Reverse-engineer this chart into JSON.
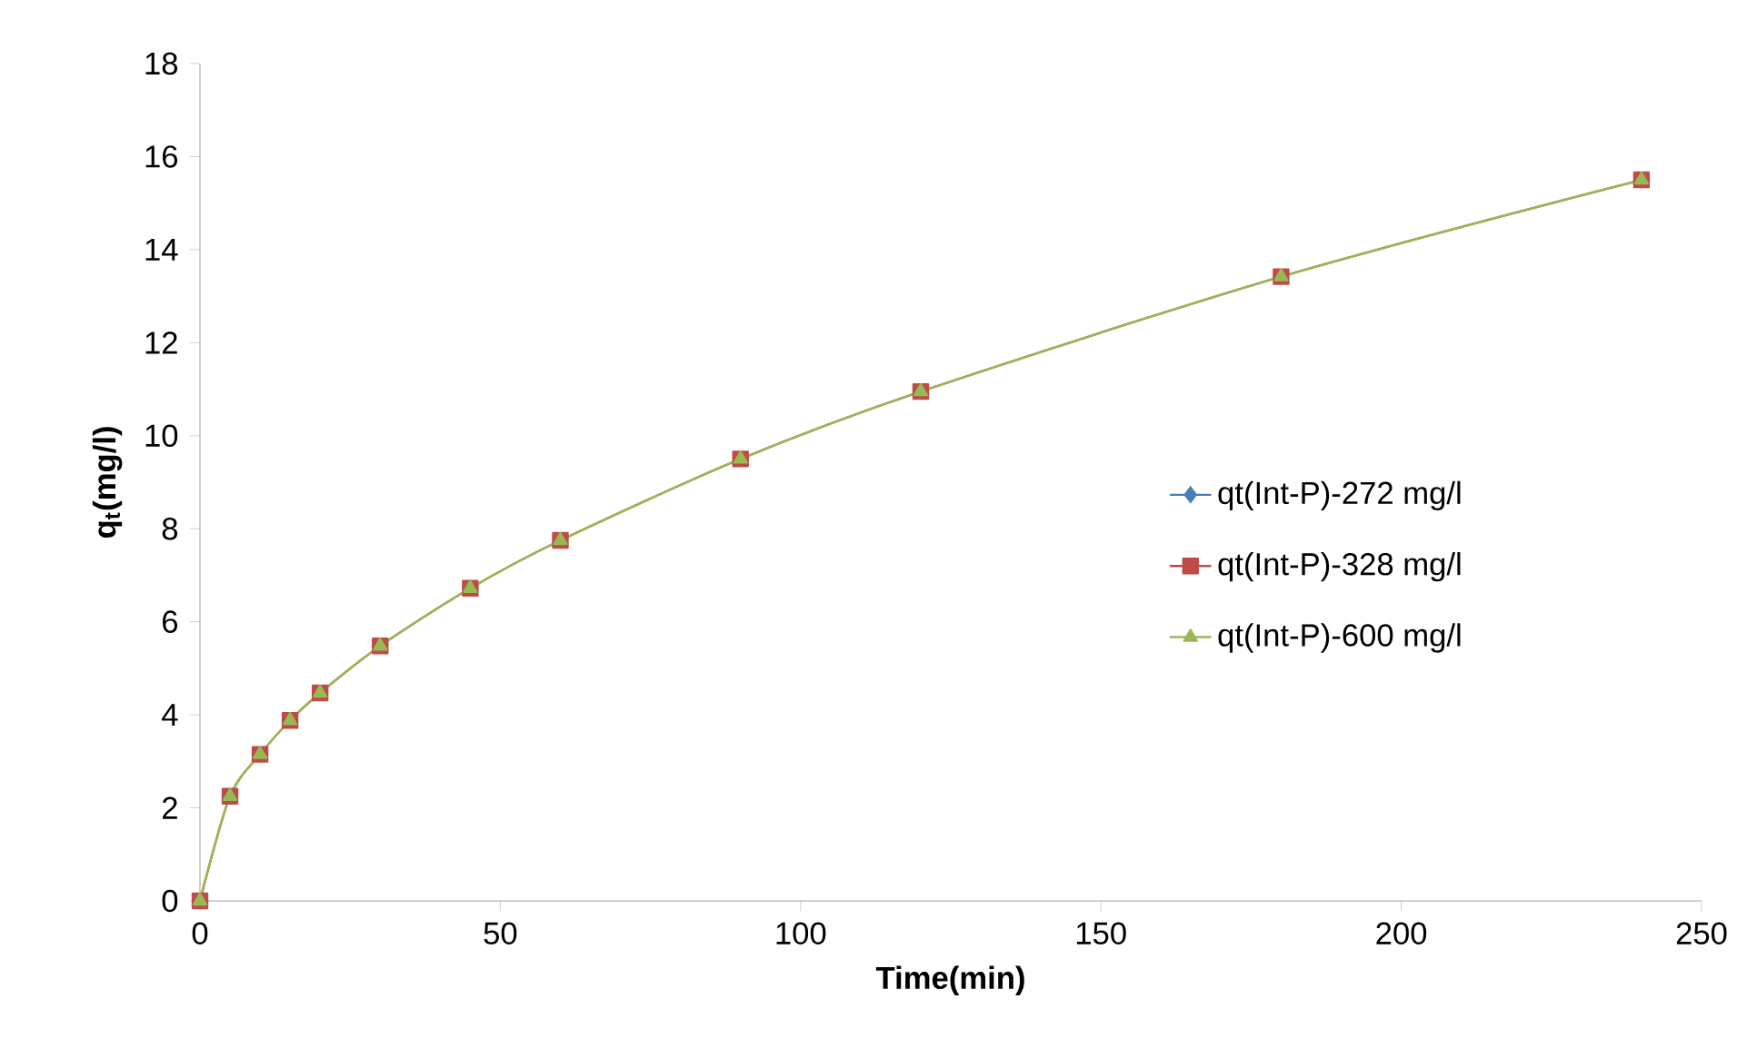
{
  "chart_data": {
    "type": "line",
    "xlabel": "Time(min)",
    "ylabel": "q$_{t}$(mg/l)",
    "x": [
      0,
      5,
      10,
      15,
      20,
      30,
      45,
      60,
      90,
      120,
      180,
      240
    ],
    "series": [
      {
        "name": "qt(Int-P)-272 mg/l",
        "color": "#4a7ebb",
        "marker": "diamond",
        "values": [
          null,
          null,
          null,
          null,
          null,
          null,
          null,
          null,
          null,
          null,
          null,
          null
        ]
      },
      {
        "name": "qt(Int-P)-328 mg/l",
        "color": "#be4b48",
        "marker": "square",
        "values": [
          0,
          2.25,
          3.15,
          3.88,
          4.47,
          5.48,
          6.72,
          7.75,
          9.5,
          10.95,
          13.42,
          15.5
        ]
      },
      {
        "name": "qt(Int-P)-600 mg/l",
        "color": "#98b954",
        "marker": "triangle",
        "values": [
          0,
          2.25,
          3.15,
          3.88,
          4.47,
          5.48,
          6.72,
          7.75,
          9.5,
          10.95,
          13.42,
          15.5
        ]
      }
    ],
    "xlim": [
      0,
      250
    ],
    "xticks": [
      0,
      50,
      100,
      150,
      200,
      250
    ],
    "ylim": [
      0,
      18
    ],
    "yticks": [
      0,
      2,
      4,
      6,
      8,
      10,
      12,
      14,
      16,
      18
    ],
    "grid": false,
    "legend": "right",
    "line_style": "solid"
  }
}
